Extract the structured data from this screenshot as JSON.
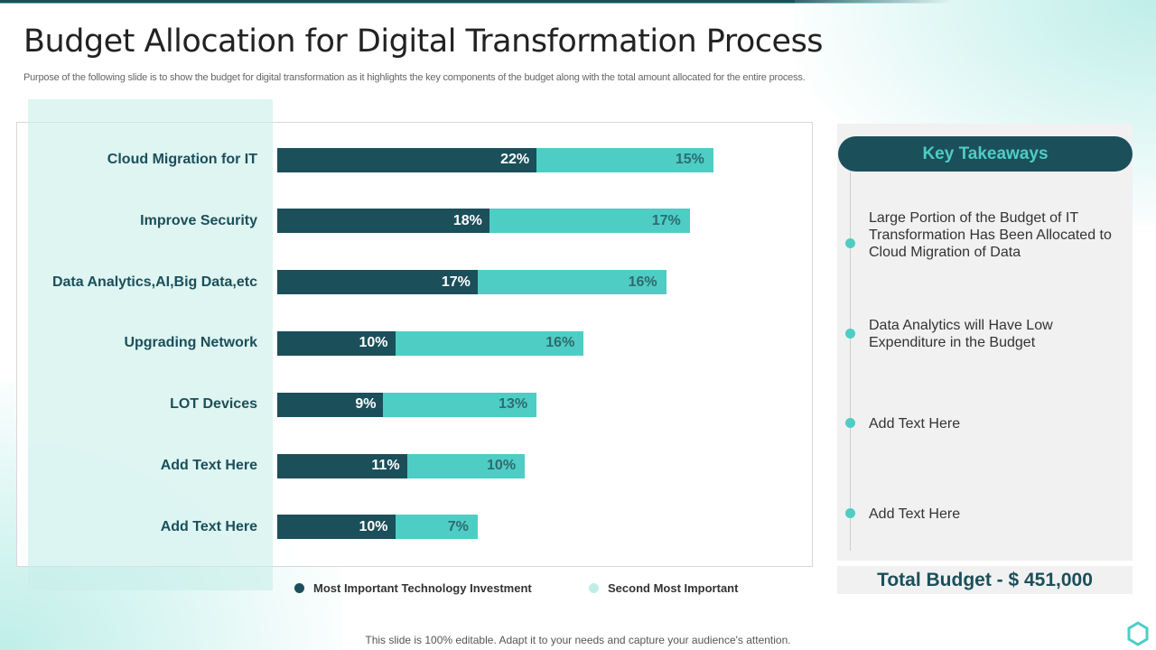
{
  "title": "Budget Allocation for Digital Transformation Process",
  "subtitle": "Purpose of the following slide is to show the budget for digital transformation as it highlights the key components of the budget along with the total amount allocated for the entire process.",
  "colors": {
    "primary": "#1b4f5a",
    "secondary": "#4ecdc4"
  },
  "chart_data": {
    "type": "bar",
    "orientation": "horizontal-stacked",
    "categories": [
      "Cloud Migration for IT",
      "Improve Security",
      "Data Analytics,AI,Big Data,etc",
      "Upgrading Network",
      "LOT Devices",
      "Add Text Here",
      "Add Text Here"
    ],
    "series": [
      {
        "name": "Most Important Technology Investment",
        "values": [
          22,
          18,
          17,
          10,
          9,
          11,
          10
        ],
        "labels": [
          "22%",
          "18%",
          "17%",
          "10%",
          "9%",
          "11%",
          "10%"
        ],
        "color": "#1b4f5a"
      },
      {
        "name": "Second Most Important",
        "values": [
          15,
          17,
          16,
          16,
          13,
          10,
          7
        ],
        "labels": [
          "15%",
          "17%",
          "16%",
          "16%",
          "13%",
          "10%",
          "7%"
        ],
        "color": "#4ecdc4"
      }
    ],
    "legend": "bottom",
    "grid": false
  },
  "takeaways": {
    "heading": "Key Takeaways",
    "items": [
      "Large Portion of the Budget of IT Transformation Has Been Allocated to Cloud Migration of Data",
      "Data Analytics will Have Low Expenditure in the Budget",
      "Add Text Here",
      "Add Text Here"
    ]
  },
  "total": "Total Budget - $ 451,000",
  "footer": "This slide is 100% editable. Adapt it to your needs and capture your audience's attention."
}
